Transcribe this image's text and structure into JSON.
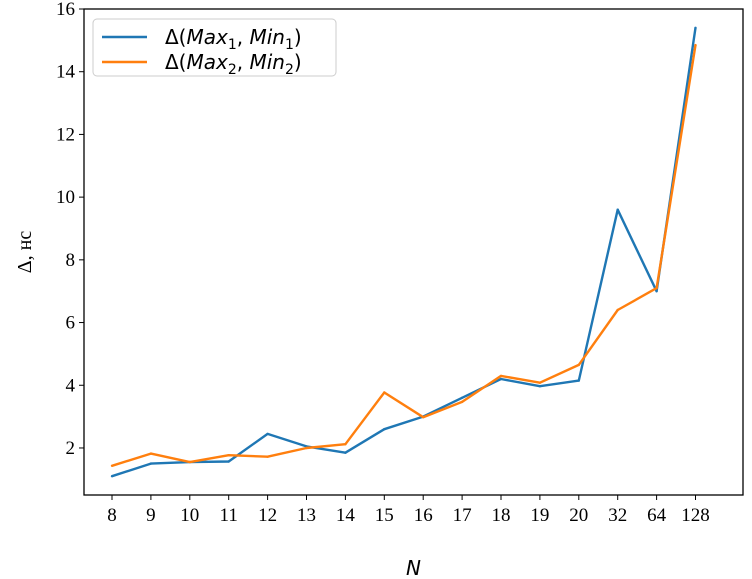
{
  "chart_data": {
    "type": "line",
    "title": "",
    "xlabel": "N",
    "ylabel": "Δ, нс",
    "categories": [
      "8",
      "9",
      "10",
      "11",
      "12",
      "13",
      "14",
      "15",
      "16",
      "17",
      "18",
      "19",
      "20",
      "32",
      "64",
      "128"
    ],
    "ylim": [
      0.5,
      16
    ],
    "yticks": [
      2,
      4,
      6,
      8,
      10,
      12,
      14,
      16
    ],
    "grid": false,
    "legend_position": "top-left",
    "series": [
      {
        "name": "Δ(Max₁, Min₁)",
        "legend_main": "Max",
        "legend_sub1": "1",
        "legend_mid": "Min",
        "legend_sub2": "1",
        "color": "#1f77b4",
        "values": [
          1.1,
          1.5,
          1.55,
          1.57,
          2.45,
          2.05,
          1.85,
          2.6,
          3.0,
          3.6,
          4.2,
          3.97,
          4.15,
          9.6,
          7.0,
          15.4
        ]
      },
      {
        "name": "Δ(Max₂, Min₂)",
        "legend_main": "Max",
        "legend_sub1": "2",
        "legend_mid": "Min",
        "legend_sub2": "2",
        "color": "#ff7f0e",
        "values": [
          1.43,
          1.82,
          1.55,
          1.77,
          1.72,
          2.0,
          2.12,
          3.77,
          2.98,
          3.47,
          4.3,
          4.08,
          4.65,
          6.4,
          7.1,
          14.85
        ]
      }
    ]
  }
}
